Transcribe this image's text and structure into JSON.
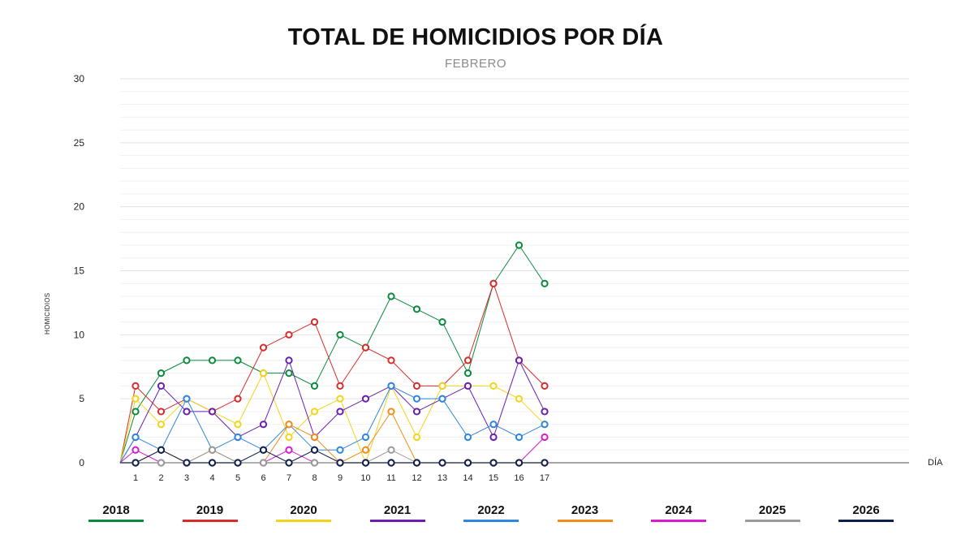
{
  "chart_data": {
    "type": "line",
    "title": "TOTAL DE HOMICIDIOS POR DÍA",
    "subtitle": "FEBRERO",
    "xlabel": "DÍA",
    "ylabel": "HOMICIDIOS",
    "ylim": [
      0,
      30
    ],
    "yticks": [
      0,
      5,
      10,
      15,
      20,
      25,
      30
    ],
    "x": [
      1,
      2,
      3,
      4,
      5,
      6,
      7,
      8,
      9,
      10,
      11,
      12,
      13,
      14,
      15,
      16,
      17
    ],
    "grid": true,
    "legend_position": "bottom",
    "series": [
      {
        "name": "2018",
        "color": "#0a8a3c",
        "values": [
          4,
          7,
          8,
          8,
          8,
          7,
          7,
          6,
          10,
          9,
          13,
          12,
          11,
          7,
          14,
          17,
          14
        ]
      },
      {
        "name": "2019",
        "color": "#d92b2b",
        "values": [
          6,
          4,
          5,
          4,
          5,
          9,
          10,
          11,
          6,
          9,
          8,
          6,
          6,
          8,
          14,
          8,
          6
        ]
      },
      {
        "name": "2020",
        "color": "#f2d51b",
        "values": [
          5,
          3,
          5,
          4,
          3,
          7,
          2,
          4,
          5,
          0,
          6,
          2,
          6,
          6,
          6,
          5,
          3
        ]
      },
      {
        "name": "2021",
        "color": "#6a1fb0",
        "values": [
          2,
          6,
          4,
          4,
          2,
          3,
          8,
          2,
          4,
          5,
          6,
          4,
          5,
          6,
          2,
          8,
          4
        ]
      },
      {
        "name": "2022",
        "color": "#2e86de",
        "values": [
          2,
          1,
          5,
          1,
          2,
          1,
          3,
          1,
          1,
          2,
          6,
          5,
          5,
          2,
          3,
          2,
          3
        ]
      },
      {
        "name": "2023",
        "color": "#f28c1a",
        "values": [
          0,
          1,
          0,
          1,
          0,
          0,
          3,
          2,
          0,
          1,
          4,
          0,
          0,
          0,
          0,
          0,
          0
        ]
      },
      {
        "name": "2024",
        "color": "#d81bd0",
        "values": [
          1,
          0,
          0,
          0,
          0,
          0,
          1,
          0,
          0,
          0,
          0,
          0,
          0,
          0,
          0,
          0,
          2
        ]
      },
      {
        "name": "2025",
        "color": "#9a9a9a",
        "values": [
          0,
          0,
          0,
          1,
          0,
          0,
          0,
          0,
          0,
          0,
          1,
          0,
          0,
          0,
          0,
          0,
          0
        ]
      },
      {
        "name": "2026",
        "color": "#0d1f4a",
        "values": [
          0,
          1,
          0,
          0,
          0,
          1,
          0,
          1,
          0,
          0,
          0,
          0,
          0,
          0,
          0,
          0,
          0
        ]
      }
    ]
  }
}
